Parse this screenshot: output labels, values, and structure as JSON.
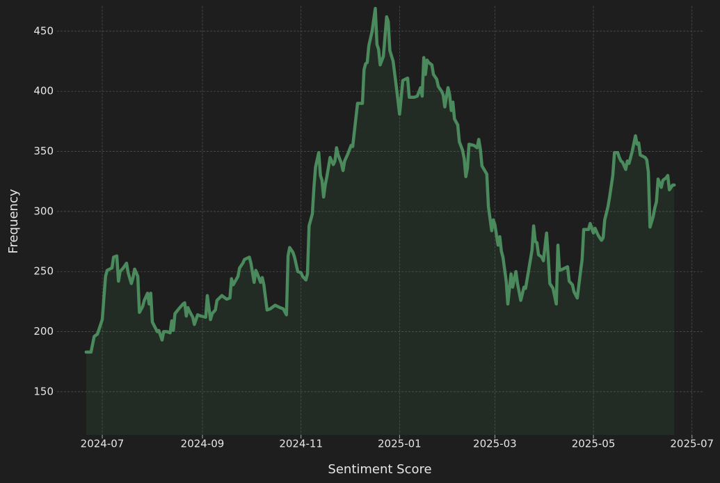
{
  "chart_data": {
    "type": "line",
    "x_label": "Sentiment Score",
    "y_label": "Frequency",
    "color": "#4a8a5c",
    "area": true,
    "grid": true,
    "xlim": [
      19877,
      20277
    ],
    "xticks": [
      {
        "value": 19905,
        "label": "2024-07"
      },
      {
        "value": 19967,
        "label": "2024-09"
      },
      {
        "value": 20028,
        "label": "2024-11"
      },
      {
        "value": 20089,
        "label": "2025-01"
      },
      {
        "value": 20148,
        "label": "2025-03"
      },
      {
        "value": 20209,
        "label": "2025-05"
      },
      {
        "value": 20270,
        "label": "2025-07"
      }
    ],
    "ylim": [
      114,
      471
    ],
    "yticks": [
      150,
      200,
      250,
      300,
      350,
      400,
      450
    ],
    "x": [
      19895,
      19898,
      19900,
      19902,
      19905,
      19907,
      19908,
      19911,
      19912,
      19914,
      19915,
      19916,
      19918,
      19920,
      19921,
      19923,
      19924,
      19925,
      19927,
      19928,
      19930,
      19931,
      19933,
      19934,
      19935,
      19936,
      19939,
      19940,
      19942,
      19943,
      19945,
      19947,
      19948,
      19949,
      19950,
      19953,
      19955,
      19956,
      19957,
      19958,
      19959,
      19961,
      19962,
      19964,
      19966,
      19969,
      19970,
      19972,
      19973,
      19975,
      19976,
      19979,
      19981,
      19982,
      19984,
      19985,
      19986,
      19989,
      19990,
      19992,
      19993,
      19996,
      19997,
      19999,
      20000,
      20001,
      20003,
      20004,
      20005,
      20007,
      20009,
      20012,
      20015,
      20017,
      20019,
      20020,
      20021,
      20023,
      20024,
      20026,
      20028,
      20029,
      20031,
      20032,
      20033,
      20035,
      20036,
      20037,
      20039,
      20040,
      20041,
      20042,
      20043,
      20044,
      20046,
      20048,
      20049,
      20050,
      20051,
      20053,
      20054,
      20055,
      20057,
      20059,
      20060,
      20061,
      20063,
      20066,
      20067,
      20068,
      20069,
      20070,
      20072,
      20074,
      20075,
      20076,
      20077,
      20079,
      20081,
      20082,
      20083,
      20085,
      20087,
      20089,
      20091,
      20094,
      20095,
      20098,
      20100,
      20102,
      20103,
      20104,
      20105,
      20106,
      20107,
      20109,
      20110,
      20112,
      20113,
      20115,
      20116,
      20117,
      20119,
      20120,
      20121,
      20122,
      20123,
      20125,
      20126,
      20128,
      20129,
      20130,
      20131,
      20132,
      20135,
      20137,
      20138,
      20139,
      20140,
      20143,
      20144,
      20146,
      20147,
      20148,
      20150,
      20151,
      20152,
      20153,
      20155,
      20156,
      20158,
      20159,
      20161,
      20162,
      20164,
      20166,
      20167,
      20169,
      20171,
      20172,
      20173,
      20174,
      20175,
      20177,
      20178,
      20180,
      20181,
      20182,
      20184,
      20186,
      20187,
      20188,
      20190,
      20193,
      20194,
      20196,
      20197,
      20199,
      20201,
      20202,
      20203,
      20206,
      20207,
      20209,
      20210,
      20212,
      20214,
      20215,
      20216,
      20218,
      20219,
      20221,
      20222,
      20224,
      20225,
      20226,
      20227,
      20229,
      20230,
      20231,
      20233,
      20235,
      20236,
      20237,
      20238,
      20241,
      20242,
      20243,
      20244,
      20246,
      20247,
      20248,
      20249,
      20251,
      20252,
      20254,
      20255,
      20256,
      20258,
      20259
    ],
    "values": [
      183,
      183,
      196,
      198,
      210,
      246,
      251,
      253,
      262,
      263,
      242,
      250,
      253,
      257,
      249,
      240,
      245,
      252,
      246,
      216,
      221,
      226,
      232,
      223,
      232,
      208,
      200,
      201,
      193,
      200,
      200,
      199,
      209,
      201,
      215,
      220,
      223,
      224,
      213,
      220,
      217,
      212,
      206,
      214,
      213,
      212,
      230,
      210,
      215,
      218,
      226,
      230,
      228,
      227,
      228,
      244,
      239,
      246,
      253,
      257,
      260,
      262,
      257,
      241,
      251,
      248,
      241,
      245,
      239,
      218,
      219,
      222,
      220,
      219,
      214,
      263,
      270,
      266,
      262,
      250,
      249,
      246,
      243,
      248,
      288,
      298,
      320,
      337,
      349,
      330,
      326,
      312,
      322,
      329,
      345,
      339,
      342,
      353,
      347,
      340,
      334,
      342,
      348,
      355,
      354,
      366,
      390,
      390,
      418,
      423,
      424,
      438,
      450,
      469,
      439,
      435,
      422,
      429,
      462,
      458,
      434,
      425,
      404,
      381,
      409,
      411,
      395,
      395,
      396,
      403,
      396,
      428,
      414,
      426,
      424,
      422,
      414,
      410,
      404,
      400,
      397,
      387,
      403,
      397,
      384,
      391,
      377,
      372,
      358,
      351,
      344,
      329,
      336,
      356,
      355,
      353,
      360,
      352,
      338,
      331,
      304,
      284,
      293,
      289,
      272,
      279,
      267,
      262,
      242,
      223,
      248,
      237,
      250,
      240,
      226,
      237,
      236,
      252,
      268,
      288,
      275,
      274,
      264,
      262,
      259,
      282,
      263,
      240,
      236,
      223,
      272,
      251,
      252,
      254,
      242,
      239,
      233,
      228,
      250,
      260,
      285,
      285,
      290,
      282,
      286,
      280,
      276,
      278,
      293,
      304,
      312,
      330,
      349,
      349,
      345,
      342,
      341,
      335,
      342,
      340,
      350,
      363,
      356,
      357,
      347,
      345,
      343,
      333,
      287,
      296,
      303,
      308,
      327,
      320,
      326,
      328,
      330,
      318,
      322,
      322
    ]
  }
}
